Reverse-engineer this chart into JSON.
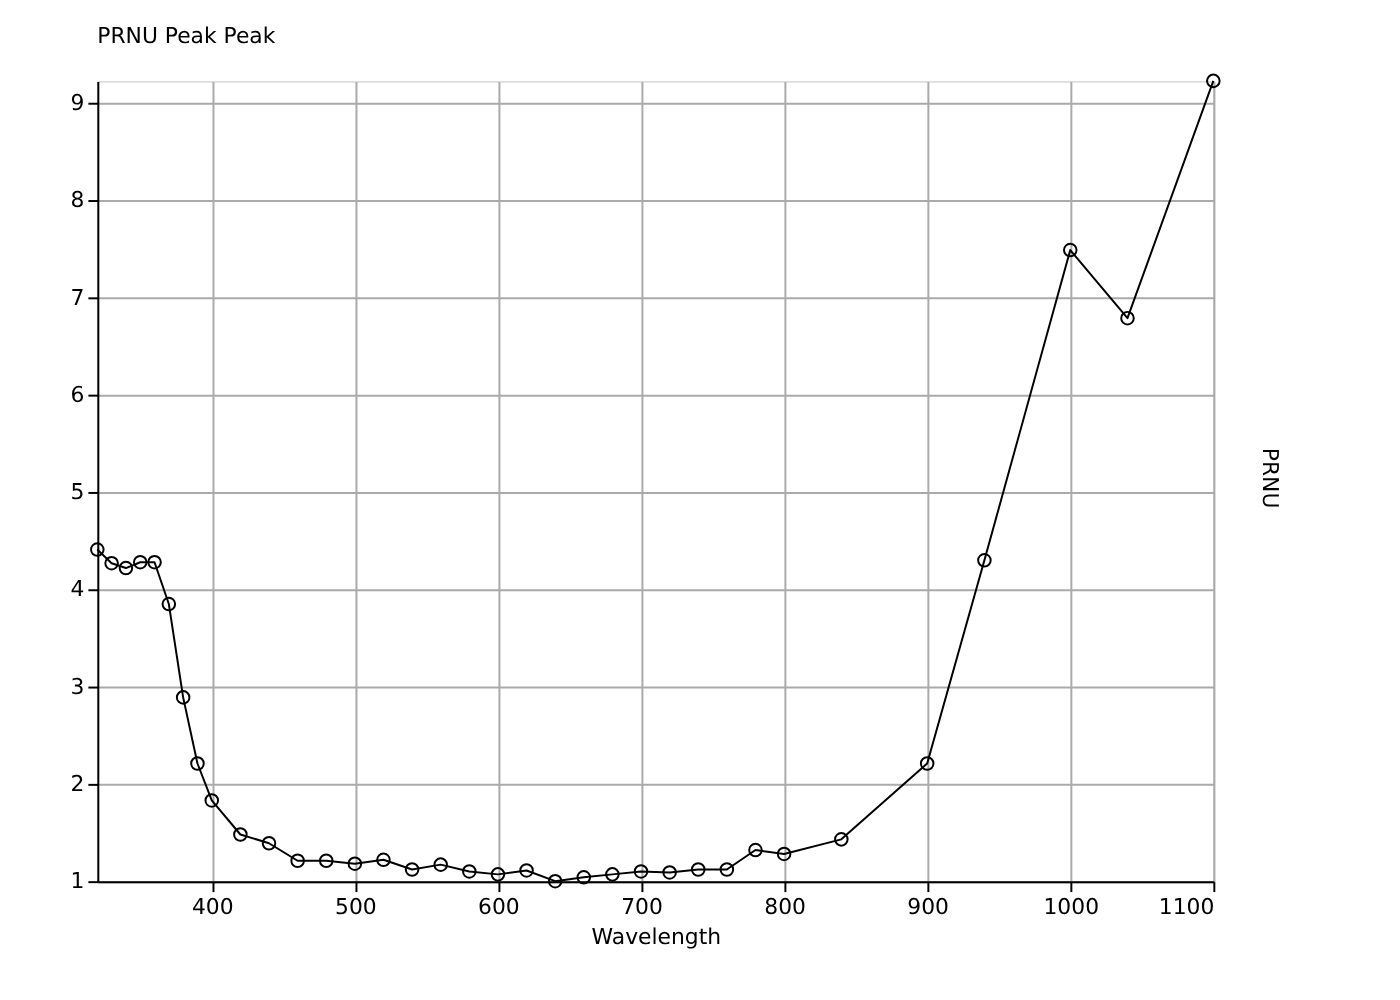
{
  "chart_data": {
    "type": "line",
    "title": "PRNU Peak Peak",
    "xlabel": "Wavelength",
    "ylabel": "PRNU",
    "x": [
      320,
      330,
      340,
      350,
      360,
      370,
      380,
      390,
      400,
      420,
      440,
      460,
      480,
      500,
      520,
      540,
      560,
      580,
      600,
      620,
      640,
      660,
      680,
      700,
      720,
      740,
      760,
      780,
      800,
      840,
      900,
      940,
      1000,
      1040,
      1100
    ],
    "series": [
      {
        "color": "#000000",
        "values": [
          4.41,
          4.27,
          4.22,
          4.28,
          4.28,
          3.85,
          2.89,
          2.21,
          1.83,
          1.48,
          1.39,
          1.21,
          1.21,
          1.18,
          1.22,
          1.12,
          1.17,
          1.1,
          1.07,
          1.11,
          1.0,
          1.04,
          1.07,
          1.1,
          1.09,
          1.12,
          1.12,
          1.32,
          1.28,
          1.43,
          2.21,
          4.3,
          7.49,
          6.79,
          9.23
        ]
      }
    ],
    "xlim": [
      320,
      1100
    ],
    "ylim": [
      1,
      9.23
    ],
    "xticks": [
      400,
      500,
      600,
      700,
      800,
      900,
      1000,
      1100
    ],
    "yticks": [
      1,
      2,
      3,
      4,
      5,
      6,
      7,
      8,
      9
    ],
    "grid": true,
    "marker": "circle",
    "line_style": "solid"
  }
}
